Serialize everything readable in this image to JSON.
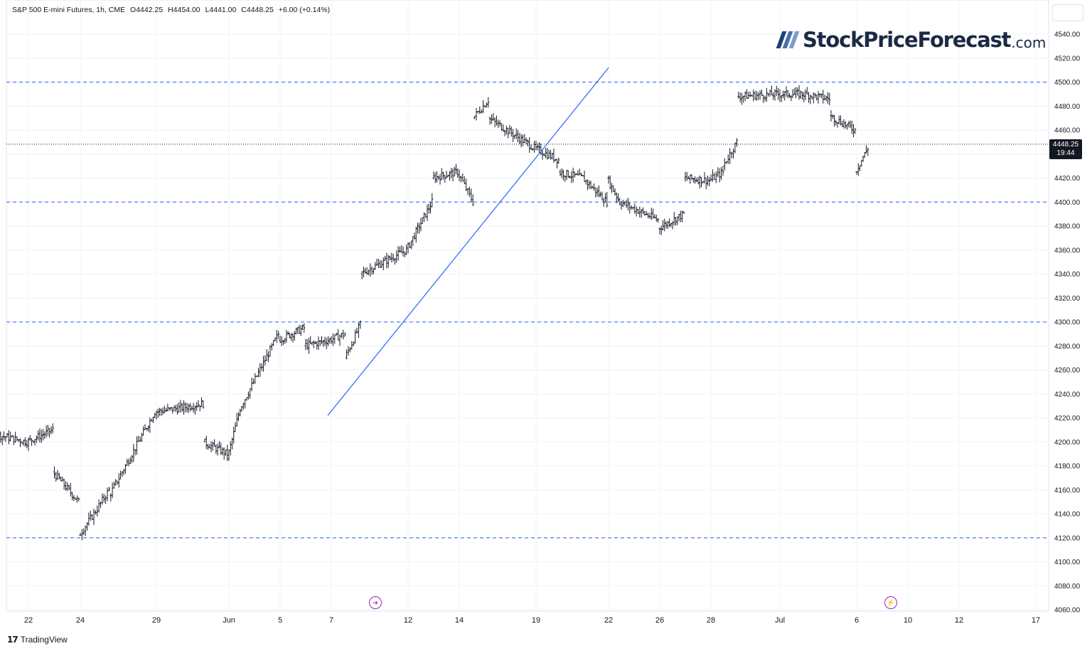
{
  "legend": {
    "symbol": "S&P 500 E-mini Futures, 1h, CME",
    "open": "O4442.25",
    "high": "H4454.00",
    "low": "L4441.00",
    "close": "C4448.25",
    "change": "+6.00 (+0.14%)"
  },
  "brand": {
    "name": "StockPriceForecast",
    "tld": ".com"
  },
  "footer": {
    "tradingview": "TradingView",
    "tv_logo": "17"
  },
  "last_price": {
    "price": "4448.25",
    "countdown": "19:44"
  },
  "events": {
    "split_icon": "arrow-right-icon",
    "dividend_icon": "lightning-icon"
  },
  "colors": {
    "candles": "#131722",
    "trendline": "#2962ff",
    "levels": "#2962ff",
    "event": "#9c27b0"
  },
  "chart_data": {
    "type": "ohlc",
    "ylim": [
      4060,
      4550
    ],
    "y_ticks": [
      4060,
      4080,
      4100,
      4120,
      4140,
      4160,
      4180,
      4200,
      4220,
      4240,
      4260,
      4280,
      4300,
      4320,
      4340,
      4360,
      4380,
      4400,
      4420,
      4440,
      4460,
      4480,
      4500,
      4520,
      4540
    ],
    "y_tick_labels": [
      "4060.00",
      "4080.00",
      "4100.00",
      "4120.00",
      "4140.00",
      "4160.00",
      "4180.00",
      "4200.00",
      "4220.00",
      "4240.00",
      "4260.00",
      "4280.00",
      "4300.00",
      "4320.00",
      "4340.00",
      "4360.00",
      "4380.00",
      "4400.00",
      "4420.00",
      "4440.00",
      "4460.00",
      "4480.00",
      "4500.00",
      "4520.00",
      "4540.00"
    ],
    "x_labels": [
      "22",
      "24",
      "29",
      "Jun",
      "5",
      "7",
      "12",
      "14",
      "19",
      "22",
      "26",
      "28",
      "Jul",
      "6",
      "10",
      "12",
      "17"
    ],
    "x_dates": [
      "2023-05-22",
      "2023-05-24",
      "2023-05-29",
      "2023-06-01",
      "2023-06-05",
      "2023-06-07",
      "2023-06-12",
      "2023-06-14",
      "2023-06-19",
      "2023-06-22",
      "2023-06-26",
      "2023-06-28",
      "2023-07-03",
      "2023-07-06",
      "2023-07-10",
      "2023-07-12",
      "2023-07-17"
    ],
    "horizontal_levels": [
      4500,
      4400,
      4300,
      4120
    ],
    "current_price": 4448.25,
    "trendline": {
      "start": [
        "2023-06-07",
        4222
      ],
      "end": [
        "2023-06-22",
        4512
      ]
    },
    "price_path": [
      [
        "2023-05-19",
        4215
      ],
      [
        "2023-05-22",
        4200
      ],
      [
        "2023-05-23",
        4210
      ],
      [
        "2023-05-23",
        4175
      ],
      [
        "2023-05-24",
        4150
      ],
      [
        "2023-05-24",
        4122
      ],
      [
        "2023-05-25",
        4140
      ],
      [
        "2023-05-26",
        4160
      ],
      [
        "2023-05-26",
        4155
      ],
      [
        "2023-05-29",
        4225
      ],
      [
        "2023-05-30",
        4228
      ],
      [
        "2023-05-31",
        4232
      ],
      [
        "2023-05-31",
        4200
      ],
      [
        "2023-06-01",
        4190
      ],
      [
        "2023-06-01",
        4186
      ],
      [
        "2023-06-02",
        4228
      ],
      [
        "2023-06-05",
        4290
      ],
      [
        "2023-06-05",
        4285
      ],
      [
        "2023-06-06",
        4295
      ],
      [
        "2023-06-06",
        4280
      ],
      [
        "2023-06-07",
        4285
      ],
      [
        "2023-06-08",
        4290
      ],
      [
        "2023-06-08",
        4270
      ],
      [
        "2023-06-09",
        4298
      ],
      [
        "2023-06-09",
        4340
      ],
      [
        "2023-06-12",
        4360
      ],
      [
        "2023-06-13",
        4400
      ],
      [
        "2023-06-13",
        4420
      ],
      [
        "2023-06-14",
        4425
      ],
      [
        "2023-06-15",
        4400
      ],
      [
        "2023-06-15",
        4470
      ],
      [
        "2023-06-16",
        4485
      ],
      [
        "2023-06-16",
        4470
      ],
      [
        "2023-06-19",
        4445
      ],
      [
        "2023-06-20",
        4435
      ],
      [
        "2023-06-20",
        4425
      ],
      [
        "2023-06-21",
        4420
      ],
      [
        "2023-06-22",
        4400
      ],
      [
        "2023-06-22",
        4420
      ],
      [
        "2023-06-23",
        4400
      ],
      [
        "2023-06-26",
        4385
      ],
      [
        "2023-06-26",
        4378
      ],
      [
        "2023-06-27",
        4390
      ],
      [
        "2023-06-27",
        4420
      ],
      [
        "2023-06-28",
        4418
      ],
      [
        "2023-06-29",
        4425
      ],
      [
        "2023-06-29",
        4430
      ],
      [
        "2023-06-30",
        4450
      ],
      [
        "2023-06-30",
        4488
      ],
      [
        "2023-07-03",
        4490
      ],
      [
        "2023-07-04",
        4490
      ],
      [
        "2023-07-05",
        4486
      ],
      [
        "2023-07-05",
        4472
      ],
      [
        "2023-07-06",
        4460
      ],
      [
        "2023-07-06",
        4425
      ],
      [
        "2023-07-07",
        4445
      ],
      [
        "2023-07-07",
        4440
      ],
      [
        "2023-07-07",
        4448
      ]
    ]
  }
}
